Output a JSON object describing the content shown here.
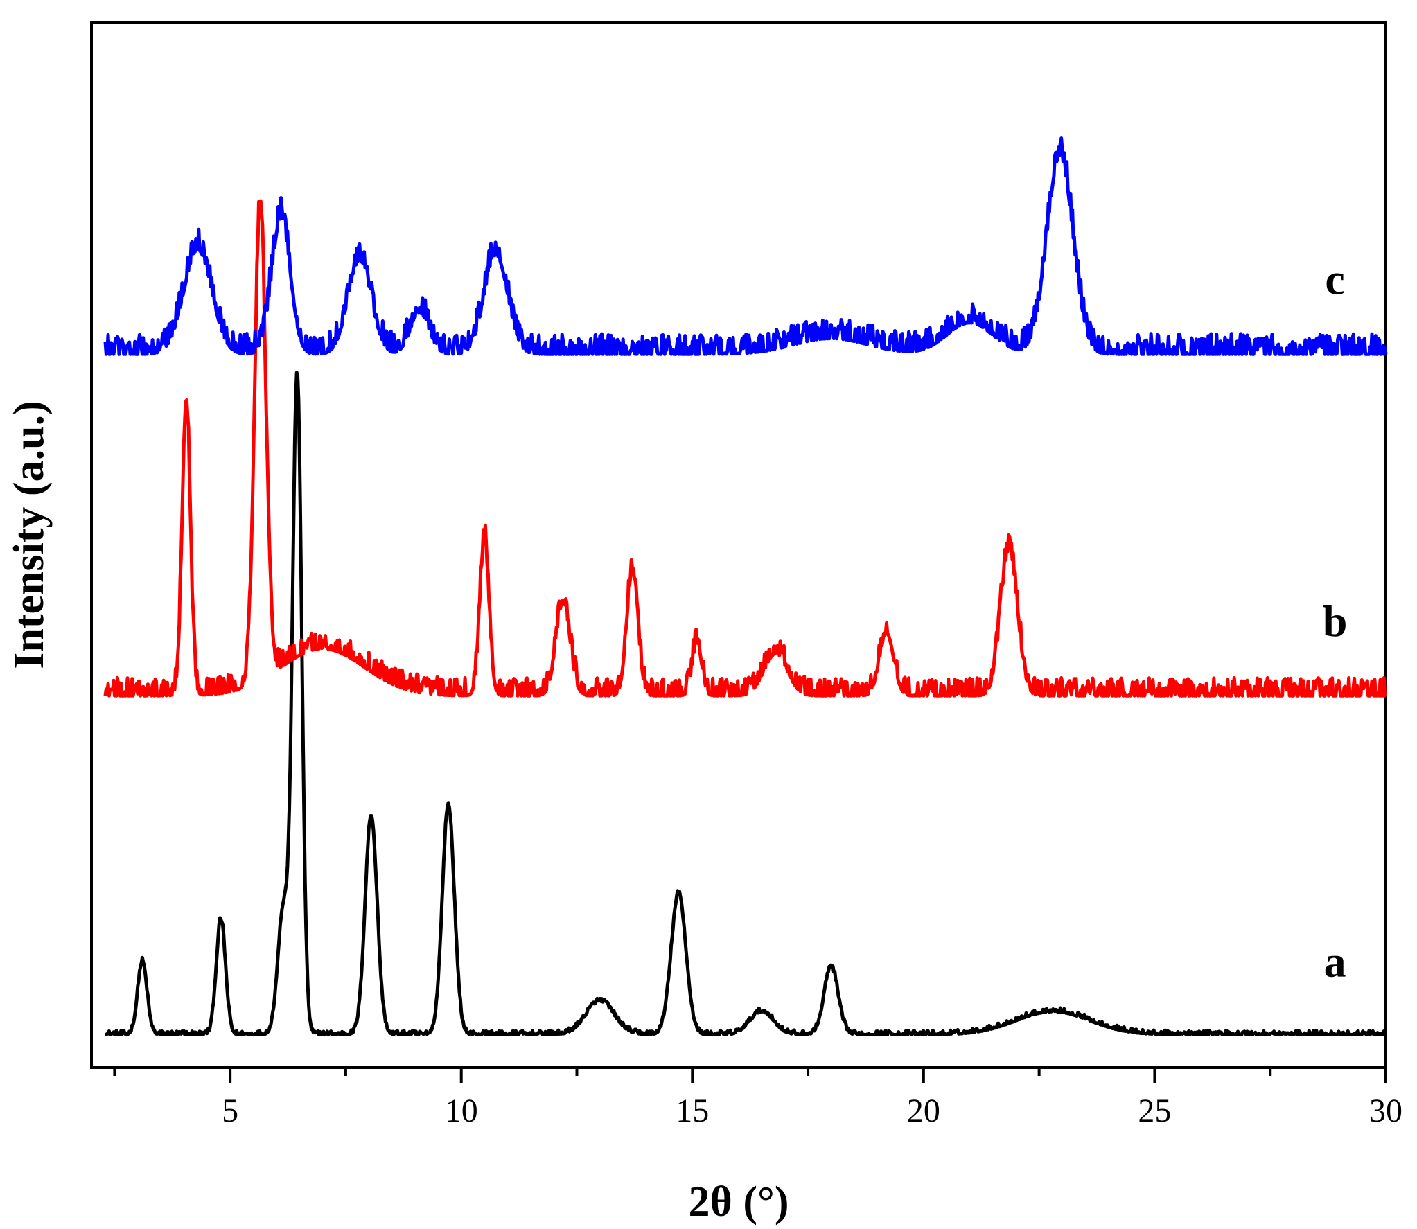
{
  "chart_data": {
    "type": "line",
    "title": "",
    "xlabel": "2θ (°)",
    "ylabel": "Intensity (a.u.)",
    "xlim": [
      2,
      30
    ],
    "ylim": [
      0,
      100
    ],
    "x_ticks": [
      5,
      10,
      15,
      20,
      25,
      30
    ],
    "y_ticks_shown": false,
    "grid": false,
    "legend": "none (curves labeled inline at right)",
    "series": [
      {
        "label": "a",
        "color": "#000000",
        "offset": 3.2,
        "noise": 0.35,
        "peaks": [
          {
            "x": 3.1,
            "h": 7,
            "w": 0.1
          },
          {
            "x": 4.8,
            "h": 11,
            "w": 0.1
          },
          {
            "x": 6.15,
            "h": 12,
            "w": 0.12
          },
          {
            "x": 6.45,
            "h": 63,
            "w": 0.1
          },
          {
            "x": 8.05,
            "h": 21,
            "w": 0.13
          },
          {
            "x": 9.72,
            "h": 22,
            "w": 0.13
          },
          {
            "x": 13.0,
            "h": 3.2,
            "w": 0.3
          },
          {
            "x": 14.7,
            "h": 13.5,
            "w": 0.16
          },
          {
            "x": 16.5,
            "h": 2.2,
            "w": 0.25
          },
          {
            "x": 18.0,
            "h": 6.5,
            "w": 0.15
          },
          {
            "x": 22.8,
            "h": 2.2,
            "w": 0.8
          }
        ]
      },
      {
        "label": "b",
        "color": "#ff0000",
        "offset": 35.8,
        "noise": 1.5,
        "peaks": [
          {
            "x": 4.05,
            "h": 28,
            "w": 0.09
          },
          {
            "x": 5.65,
            "h": 46,
            "w": 0.12
          },
          {
            "x": 7.0,
            "h": 4.5,
            "w": 0.9
          },
          {
            "x": 10.5,
            "h": 15,
            "w": 0.1
          },
          {
            "x": 12.2,
            "h": 9,
            "w": 0.15
          },
          {
            "x": 13.7,
            "h": 12,
            "w": 0.12
          },
          {
            "x": 15.1,
            "h": 5,
            "w": 0.1
          },
          {
            "x": 16.8,
            "h": 4,
            "w": 0.25
          },
          {
            "x": 19.2,
            "h": 6,
            "w": 0.15
          },
          {
            "x": 21.85,
            "h": 14,
            "w": 0.18
          }
        ]
      },
      {
        "label": "c",
        "color": "#0000ff",
        "offset": 68.5,
        "noise": 1.7,
        "peaks": [
          {
            "x": 4.3,
            "h": 10,
            "w": 0.3
          },
          {
            "x": 6.1,
            "h": 13,
            "w": 0.2
          },
          {
            "x": 7.8,
            "h": 9,
            "w": 0.25
          },
          {
            "x": 9.1,
            "h": 4,
            "w": 0.2
          },
          {
            "x": 10.75,
            "h": 9.5,
            "w": 0.25
          },
          {
            "x": 22.95,
            "h": 19,
            "w": 0.28
          },
          {
            "x": 21.0,
            "h": 3,
            "w": 0.5
          },
          {
            "x": 18.0,
            "h": 1.5,
            "w": 0.8
          }
        ]
      }
    ]
  }
}
